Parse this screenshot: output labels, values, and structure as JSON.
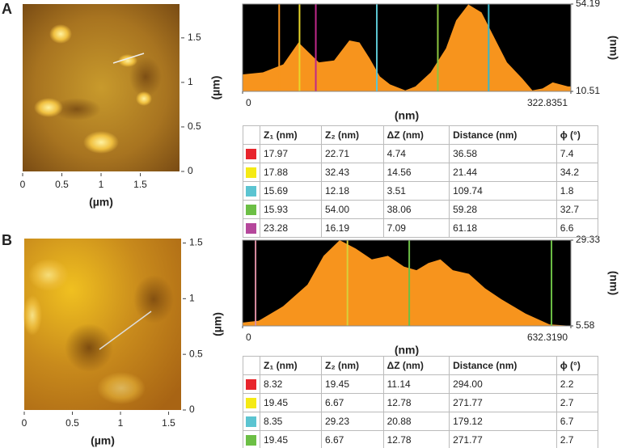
{
  "panels": [
    {
      "label": "A",
      "image": {
        "xlabel": "(µm)",
        "ylabel": "(µm)",
        "xlim": [
          0,
          2
        ],
        "ylim": [
          0,
          1.88
        ],
        "xticks": [
          0,
          0.5,
          1,
          1.5
        ],
        "yticks": [
          0,
          0.5,
          1,
          1.5
        ]
      },
      "profile": {
        "type": "area",
        "xlabel": "(nm)",
        "ylabel": "(nm)",
        "xlim": [
          0,
          322.8351
        ],
        "ylim": [
          10.51,
          54.19
        ],
        "xticks": [
          0,
          322.8351
        ],
        "yticks": [
          10.51,
          54.19
        ],
        "color": "#f7941d",
        "x": [
          0,
          20,
          40,
          55,
          65,
          75,
          90,
          105,
          115,
          125,
          135,
          145,
          160,
          170,
          185,
          200,
          210,
          222,
          235,
          250,
          260,
          275,
          285,
          295,
          305,
          320,
          322.8351
        ],
        "values": [
          19,
          20,
          24,
          35,
          30,
          25,
          26,
          36,
          35,
          27,
          18,
          14,
          11,
          13,
          20,
          32,
          46,
          54,
          50,
          35,
          25,
          17,
          11,
          12,
          15,
          13,
          13
        ],
        "cursors": [
          {
            "x": 36,
            "color": "#f7941d"
          },
          {
            "x": 56,
            "color": "#e8d62a"
          },
          {
            "x": 72,
            "color": "#c0288a"
          },
          {
            "x": 132,
            "color": "#5bc4d1"
          },
          {
            "x": 192,
            "color": "#8cc63f"
          },
          {
            "x": 242,
            "color": "#3ab7c8"
          }
        ]
      },
      "table": {
        "headers": [
          "Z₁ (nm)",
          "Z₂ (nm)",
          "ΔZ (nm)",
          "Distance (nm)",
          "ϕ (°)"
        ],
        "rows": [
          {
            "color": "#e8242c",
            "cells": [
              "17.97",
              "22.71",
              "4.74",
              "36.58",
              "7.4"
            ]
          },
          {
            "color": "#f5ea14",
            "cells": [
              "17.88",
              "32.43",
              "14.56",
              "21.44",
              "34.2"
            ]
          },
          {
            "color": "#5bc4d1",
            "cells": [
              "15.69",
              "12.18",
              "3.51",
              "109.74",
              "1.8"
            ]
          },
          {
            "color": "#6cbf45",
            "cells": [
              "15.93",
              "54.00",
              "38.06",
              "59.28",
              "32.7"
            ]
          },
          {
            "color": "#b5479b",
            "cells": [
              "23.28",
              "16.19",
              "7.09",
              "61.18",
              "6.6"
            ]
          }
        ]
      }
    },
    {
      "label": "B",
      "image": {
        "xlabel": "(µm)",
        "ylabel": "(µm)",
        "xlim": [
          0,
          1.63
        ],
        "ylim": [
          0,
          1.54
        ],
        "xticks": [
          0,
          0.5,
          1,
          1.5
        ],
        "yticks": [
          0,
          0.5,
          1,
          1.5
        ]
      },
      "profile": {
        "type": "area",
        "xlabel": "(nm)",
        "ylabel": "(nm)",
        "xlim": [
          0,
          {
            "value": 632.319,
            "label": "632.3190"
          }
        ],
        "ylim": [
          5.58,
          29.33
        ],
        "xticks": [
          0,
          {
            "value": 632.319,
            "label": "632.3190"
          }
        ],
        "yticks": [
          5.58,
          29.33
        ],
        "color": "#f7941d",
        "x": [
          0,
          31,
          78,
          125,
          156,
          187,
          218,
          249,
          280,
          311,
          335,
          358,
          381,
          405,
          436,
          467,
          498,
          545,
          591,
          632.319
        ],
        "values": [
          6.5,
          7,
          11,
          17,
          25,
          29.33,
          27,
          24,
          25,
          22,
          21,
          23,
          24,
          21,
          20,
          16,
          13,
          9,
          6,
          5.6
        ],
        "cursors": [
          {
            "x": 25,
            "color": "#d98ca0"
          },
          {
            "x": 202,
            "color": "#d8d03a"
          },
          {
            "x": 321,
            "color": "#6cbf45"
          },
          {
            "x": 595,
            "color": "#6cbf45"
          }
        ]
      },
      "table": {
        "headers": [
          "Z₁ (nm)",
          "Z₂ (nm)",
          "ΔZ (nm)",
          "Distance (nm)",
          "ϕ (°)"
        ],
        "rows": [
          {
            "color": "#e8242c",
            "cells": [
              "8.32",
              "19.45",
              "11.14",
              "294.00",
              "2.2"
            ]
          },
          {
            "color": "#f5ea14",
            "cells": [
              "19.45",
              "6.67",
              "12.78",
              "271.77",
              "2.7"
            ]
          },
          {
            "color": "#5bc4d1",
            "cells": [
              "8.35",
              "29.23",
              "20.88",
              "179.12",
              "6.7"
            ]
          },
          {
            "color": "#6cbf45",
            "cells": [
              "19.45",
              "6.67",
              "12.78",
              "271.77",
              "2.7"
            ]
          },
          {
            "color": "#b5479b",
            "cells": []
          }
        ]
      }
    }
  ]
}
